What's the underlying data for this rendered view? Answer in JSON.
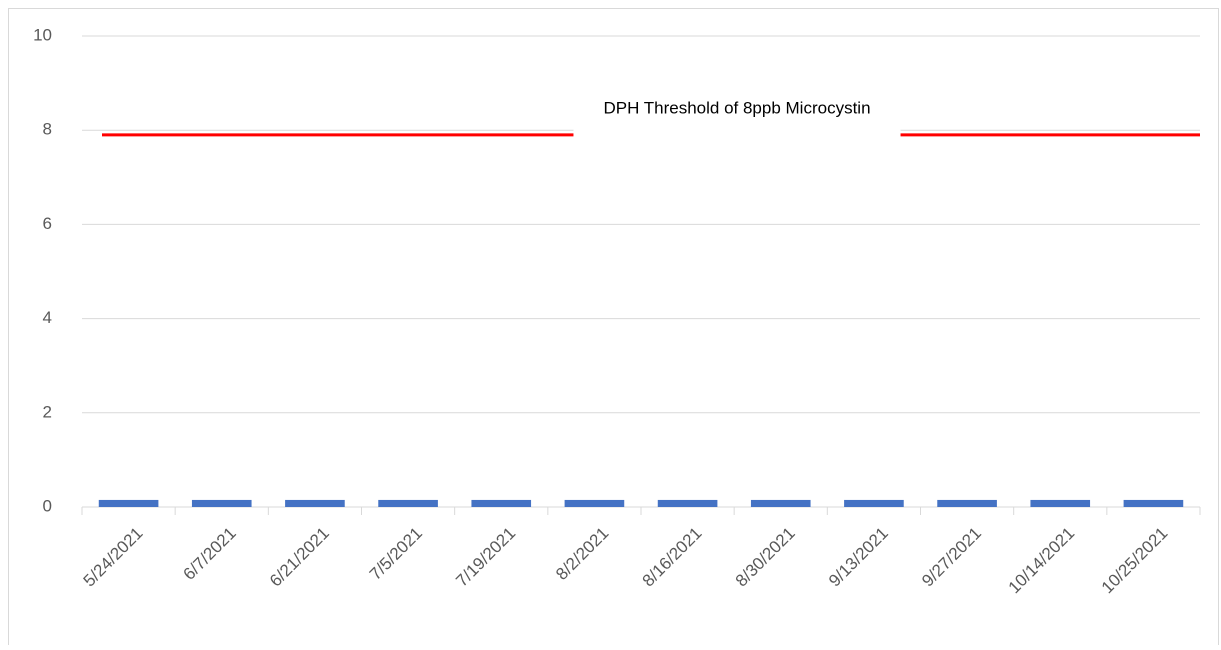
{
  "chart_data": {
    "type": "bar",
    "categories": [
      "5/24/2021",
      "6/7/2021",
      "6/21/2021",
      "7/5/2021",
      "7/19/2021",
      "8/2/2021",
      "8/16/2021",
      "8/30/2021",
      "9/13/2021",
      "9/27/2021",
      "10/14/2021",
      "10/25/2021"
    ],
    "values": [
      0.15,
      0.15,
      0.15,
      0.15,
      0.15,
      0.15,
      0.15,
      0.15,
      0.15,
      0.15,
      0.15,
      0.15
    ],
    "color": "#4472c4",
    "threshold": {
      "label": "DPH Threshold of 8ppb Microcystin",
      "value": 7.9,
      "color": "#ff0000"
    },
    "ylim": [
      0,
      10
    ],
    "yticks": [
      0,
      2,
      4,
      6,
      8,
      10
    ],
    "grid": true
  }
}
